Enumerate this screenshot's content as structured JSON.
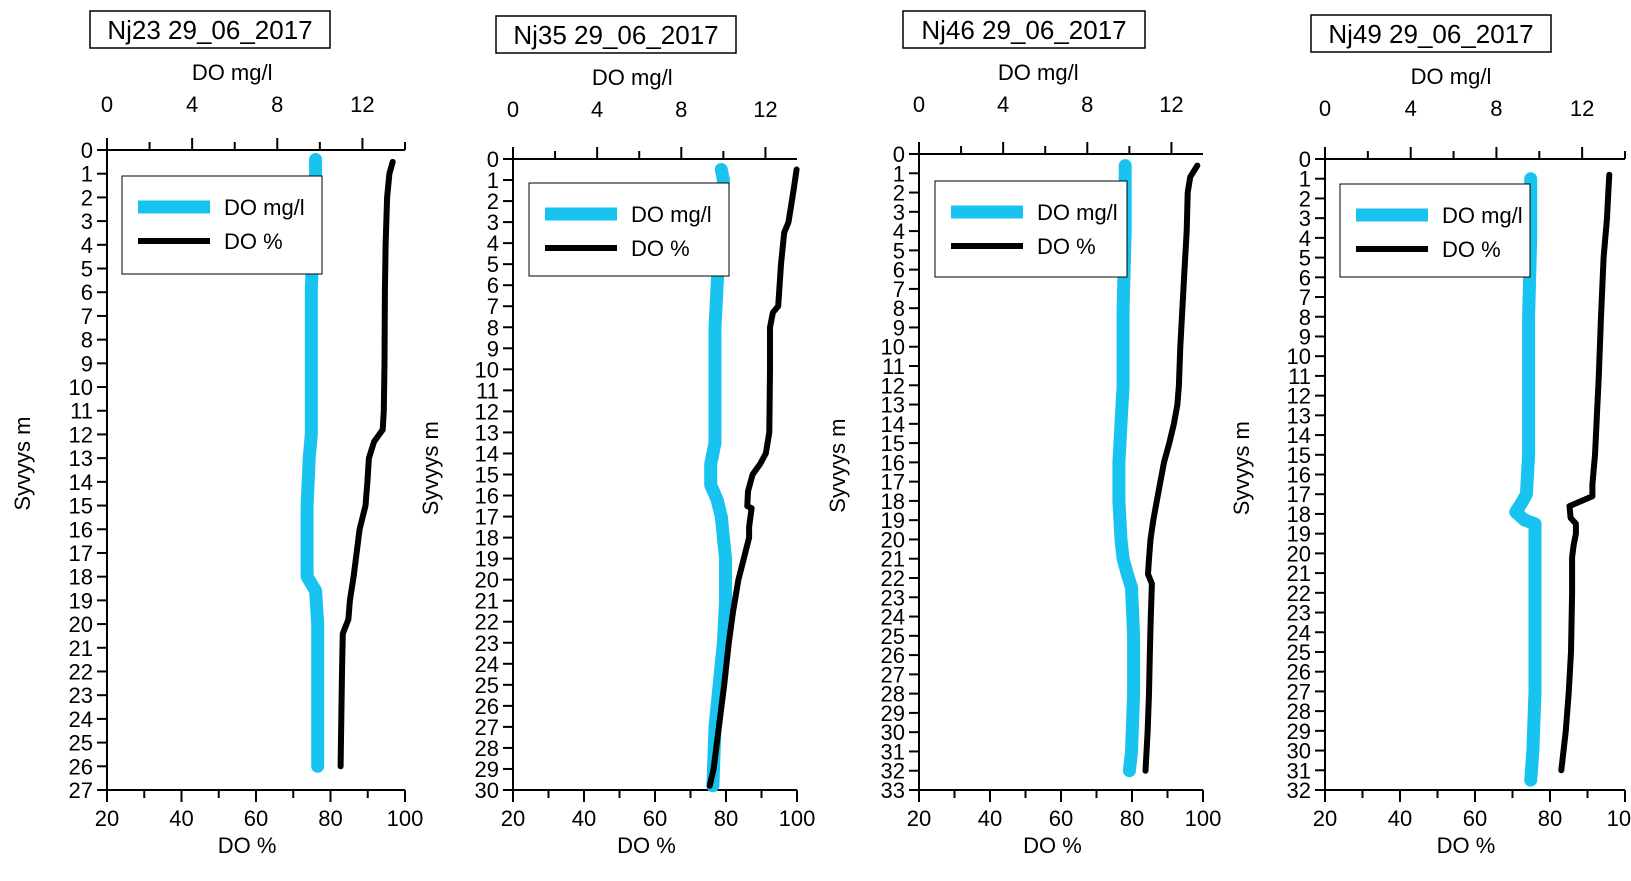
{
  "chart_data": [
    {
      "type": "line",
      "title": "Nj23 29_06_2017",
      "ylabel": "Syvyys m",
      "x_top_label": "DO mg/l",
      "x_bottom_label": "DO %",
      "x_top_range": [
        0,
        14
      ],
      "x_bottom_range": [
        20,
        100
      ],
      "x_top_ticks": [
        0,
        4,
        8,
        12
      ],
      "x_bottom_ticks": [
        20,
        40,
        60,
        80,
        100
      ],
      "ylim": [
        0,
        27
      ],
      "y_ticks": [
        0,
        1,
        2,
        3,
        4,
        5,
        6,
        7,
        8,
        9,
        10,
        11,
        12,
        13,
        14,
        15,
        16,
        17,
        18,
        19,
        20,
        21,
        22,
        23,
        24,
        25,
        26,
        27
      ],
      "grid": false,
      "legend_position": "top-right",
      "series": [
        {
          "name": "DO mg/l",
          "axis": "top",
          "color": "#19c3f0",
          "points": [
            [
              9.8,
              0.4
            ],
            [
              9.8,
              1
            ],
            [
              9.7,
              3
            ],
            [
              9.6,
              6
            ],
            [
              9.6,
              9
            ],
            [
              9.6,
              11
            ],
            [
              9.6,
              12
            ],
            [
              9.5,
              13
            ],
            [
              9.4,
              15
            ],
            [
              9.4,
              17
            ],
            [
              9.4,
              18
            ],
            [
              9.8,
              18.6
            ],
            [
              9.9,
              20
            ],
            [
              9.9,
              22
            ],
            [
              9.9,
              24
            ],
            [
              9.9,
              26
            ]
          ]
        },
        {
          "name": "DO %",
          "axis": "bottom",
          "color": "#000000",
          "points": [
            [
              96.7,
              0.5
            ],
            [
              95.8,
              1
            ],
            [
              95.2,
              2
            ],
            [
              94.8,
              4
            ],
            [
              94.6,
              6
            ],
            [
              94.5,
              9
            ],
            [
              94.3,
              11
            ],
            [
              94.0,
              11.8
            ],
            [
              91.7,
              12.3
            ],
            [
              90.3,
              13
            ],
            [
              89.9,
              14
            ],
            [
              89.4,
              15
            ],
            [
              87.8,
              16
            ],
            [
              87.0,
              17
            ],
            [
              86.2,
              18
            ],
            [
              85.2,
              19
            ],
            [
              84.8,
              19.8
            ],
            [
              83.3,
              20.4
            ],
            [
              83.1,
              22
            ],
            [
              82.9,
              24
            ],
            [
              82.7,
              26
            ]
          ]
        }
      ]
    },
    {
      "type": "line",
      "title": "Nj35 29_06_2017",
      "ylabel": "Syvyys m",
      "x_top_label": "DO mg/l",
      "x_bottom_label": "DO %",
      "x_top_range": [
        0,
        13.5
      ],
      "x_bottom_range": [
        20,
        100
      ],
      "x_top_ticks": [
        0,
        4,
        8,
        12
      ],
      "x_bottom_ticks": [
        20,
        40,
        60,
        80,
        100
      ],
      "ylim": [
        0,
        30
      ],
      "y_ticks": [
        0,
        1,
        2,
        3,
        4,
        5,
        6,
        7,
        8,
        9,
        10,
        11,
        12,
        13,
        14,
        15,
        16,
        17,
        18,
        19,
        20,
        21,
        22,
        23,
        24,
        25,
        26,
        27,
        28,
        29,
        30
      ],
      "grid": false,
      "legend_position": "top-right",
      "series": [
        {
          "name": "DO mg/l",
          "axis": "top",
          "color": "#19c3f0",
          "points": [
            [
              9.9,
              0.5
            ],
            [
              10.0,
              1
            ],
            [
              9.9,
              3
            ],
            [
              9.7,
              6
            ],
            [
              9.6,
              8
            ],
            [
              9.6,
              10
            ],
            [
              9.6,
              12
            ],
            [
              9.6,
              13.5
            ],
            [
              9.4,
              14.5
            ],
            [
              9.4,
              15.5
            ],
            [
              9.7,
              16.2
            ],
            [
              9.9,
              17
            ],
            [
              10.0,
              18
            ],
            [
              10.1,
              19
            ],
            [
              10.1,
              21
            ],
            [
              10.0,
              23
            ],
            [
              9.8,
              25
            ],
            [
              9.6,
              27
            ],
            [
              9.5,
              29.8
            ]
          ]
        },
        {
          "name": "DO %",
          "axis": "bottom",
          "color": "#000000",
          "points": [
            [
              99.9,
              0.5
            ],
            [
              99.0,
              1.5
            ],
            [
              97.6,
              3
            ],
            [
              96.4,
              3.5
            ],
            [
              95.5,
              5
            ],
            [
              94.7,
              7
            ],
            [
              93.2,
              7.3
            ],
            [
              92.4,
              8
            ],
            [
              92.4,
              10
            ],
            [
              92.2,
              13
            ],
            [
              91.2,
              14
            ],
            [
              89.6,
              14.5
            ],
            [
              87.5,
              15
            ],
            [
              86.2,
              15.8
            ],
            [
              86.0,
              16.5
            ],
            [
              87.2,
              16.6
            ],
            [
              86.5,
              17.5
            ],
            [
              86.5,
              18
            ],
            [
              85.0,
              19
            ],
            [
              83.5,
              20
            ],
            [
              82.0,
              21.5
            ],
            [
              80.8,
              23
            ],
            [
              79.5,
              25
            ],
            [
              78.0,
              27
            ],
            [
              76.5,
              29
            ],
            [
              75.4,
              29.8
            ]
          ]
        }
      ]
    },
    {
      "type": "line",
      "title": "Nj46 29_06_2017",
      "ylabel": "Syvyys m",
      "x_top_label": "DO mg/l",
      "x_bottom_label": "DO %",
      "x_top_range": [
        0,
        13.5
      ],
      "x_bottom_range": [
        20,
        100
      ],
      "x_top_ticks": [
        0,
        4,
        8,
        12
      ],
      "x_bottom_ticks": [
        20,
        40,
        60,
        80,
        100
      ],
      "ylim": [
        0,
        33
      ],
      "y_ticks": [
        0,
        1,
        2,
        3,
        4,
        5,
        6,
        7,
        8,
        9,
        10,
        11,
        12,
        13,
        14,
        15,
        16,
        17,
        18,
        19,
        20,
        21,
        22,
        23,
        24,
        25,
        26,
        27,
        28,
        29,
        30,
        31,
        32,
        33
      ],
      "grid": false,
      "legend_position": "top-right",
      "series": [
        {
          "name": "DO mg/l",
          "axis": "top",
          "color": "#19c3f0",
          "points": [
            [
              9.8,
              0.6
            ],
            [
              9.8,
              1
            ],
            [
              9.8,
              4
            ],
            [
              9.7,
              8
            ],
            [
              9.7,
              12
            ],
            [
              9.6,
              14
            ],
            [
              9.5,
              16
            ],
            [
              9.5,
              18
            ],
            [
              9.6,
              20
            ],
            [
              9.7,
              21
            ],
            [
              9.9,
              21.8
            ],
            [
              10.1,
              22.5
            ],
            [
              10.2,
              25
            ],
            [
              10.2,
              28
            ],
            [
              10.1,
              31
            ],
            [
              10.0,
              32
            ]
          ]
        },
        {
          "name": "DO %",
          "axis": "bottom",
          "color": "#000000",
          "points": [
            [
              98.4,
              0.6
            ],
            [
              96.4,
              1.2
            ],
            [
              95.7,
              2
            ],
            [
              95.4,
              4
            ],
            [
              94.8,
              6
            ],
            [
              94.2,
              8
            ],
            [
              93.6,
              10
            ],
            [
              93.2,
              12
            ],
            [
              92.8,
              13
            ],
            [
              91.8,
              14
            ],
            [
              90.5,
              15
            ],
            [
              89.0,
              16
            ],
            [
              88.0,
              17
            ],
            [
              87.0,
              18
            ],
            [
              86.0,
              19
            ],
            [
              85.2,
              20
            ],
            [
              84.8,
              21
            ],
            [
              84.5,
              21.8
            ],
            [
              85.6,
              22.3
            ],
            [
              85.3,
              24
            ],
            [
              85.0,
              26
            ],
            [
              84.8,
              28
            ],
            [
              84.4,
              30
            ],
            [
              83.8,
              32
            ]
          ]
        }
      ]
    },
    {
      "type": "line",
      "title": "Nj49 29_06_2017",
      "ylabel": "Syvyys m",
      "x_top_label": "DO mg/l",
      "x_bottom_label": "DO %",
      "x_top_range": [
        0,
        14
      ],
      "x_bottom_range": [
        20,
        100
      ],
      "x_top_ticks": [
        0,
        4,
        8,
        12
      ],
      "x_bottom_ticks": [
        20,
        40,
        60,
        80,
        100
      ],
      "ylim": [
        0,
        32
      ],
      "y_ticks": [
        0,
        1,
        2,
        3,
        4,
        5,
        6,
        7,
        8,
        9,
        10,
        11,
        12,
        13,
        14,
        15,
        16,
        17,
        18,
        19,
        20,
        21,
        22,
        23,
        24,
        25,
        26,
        27,
        28,
        29,
        30,
        31,
        32
      ],
      "grid": false,
      "legend_position": "top-right",
      "series": [
        {
          "name": "DO mg/l",
          "axis": "top",
          "color": "#19c3f0",
          "points": [
            [
              9.6,
              1
            ],
            [
              9.6,
              4
            ],
            [
              9.5,
              8
            ],
            [
              9.5,
              12
            ],
            [
              9.5,
              15
            ],
            [
              9.4,
              17
            ],
            [
              9.2,
              17.4
            ],
            [
              8.9,
              17.9
            ],
            [
              9.3,
              18.3
            ],
            [
              9.8,
              18.5
            ],
            [
              9.8,
              20
            ],
            [
              9.8,
              23
            ],
            [
              9.8,
              27
            ],
            [
              9.7,
              30
            ],
            [
              9.6,
              31.5
            ]
          ]
        },
        {
          "name": "DO %",
          "axis": "bottom",
          "color": "#000000",
          "points": [
            [
              95.8,
              0.8
            ],
            [
              95.6,
              1.5
            ],
            [
              95.2,
              3
            ],
            [
              94.3,
              5
            ],
            [
              93.6,
              8
            ],
            [
              93.0,
              11
            ],
            [
              92.5,
              13
            ],
            [
              92.0,
              15
            ],
            [
              91.3,
              16.5
            ],
            [
              91.3,
              17.1
            ],
            [
              85.2,
              17.6
            ],
            [
              85.5,
              18.2
            ],
            [
              86.9,
              18.5
            ],
            [
              86.9,
              19
            ],
            [
              86.3,
              19.6
            ],
            [
              85.9,
              20.2
            ],
            [
              85.9,
              22
            ],
            [
              85.6,
              25
            ],
            [
              85.0,
              27
            ],
            [
              84.2,
              29
            ],
            [
              83.0,
              31
            ]
          ]
        }
      ]
    }
  ]
}
